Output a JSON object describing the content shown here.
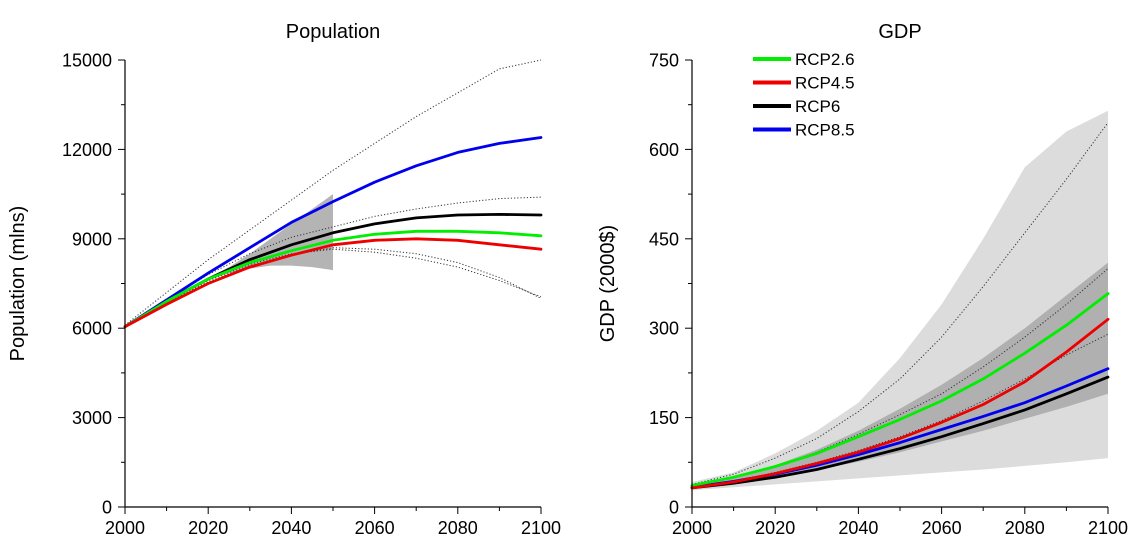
{
  "chart_data": [
    {
      "type": "line",
      "title": "Population",
      "xlabel": "",
      "ylabel": "Population (mlns)",
      "xlim": [
        2000,
        2100
      ],
      "ylim": [
        0,
        15000
      ],
      "xticks": [
        2000,
        2020,
        2040,
        2060,
        2080,
        2100
      ],
      "yticks": [
        0,
        3000,
        6000,
        9000,
        12000,
        15000
      ],
      "grid": false,
      "legend": "none",
      "x": [
        2000,
        2010,
        2020,
        2030,
        2040,
        2050,
        2060,
        2070,
        2080,
        2090,
        2100
      ],
      "series": [
        {
          "name": "RCP2.6",
          "color": "#00ee00",
          "values": [
            6050,
            6900,
            7650,
            8200,
            8600,
            8950,
            9150,
            9250,
            9250,
            9200,
            9100
          ]
        },
        {
          "name": "RCP4.5",
          "color": "#ee0000",
          "values": [
            6050,
            6800,
            7500,
            8050,
            8450,
            8800,
            8950,
            9000,
            8950,
            8800,
            8650
          ]
        },
        {
          "name": "RCP6",
          "color": "#000000",
          "values": [
            6050,
            6900,
            7650,
            8300,
            8800,
            9200,
            9500,
            9700,
            9800,
            9820,
            9800
          ]
        },
        {
          "name": "RCP8.5",
          "color": "#0000ee",
          "values": [
            6050,
            6950,
            7850,
            8700,
            9550,
            10250,
            10900,
            11450,
            11900,
            12200,
            12400
          ]
        }
      ],
      "reference_lines": [
        {
          "style": "dotted",
          "values": [
            6100,
            7200,
            8300,
            9300,
            10300,
            11300,
            12200,
            13100,
            13900,
            14700,
            15000
          ]
        },
        {
          "style": "dotted",
          "values": [
            6050,
            6950,
            7800,
            8500,
            9050,
            9400,
            9750,
            10000,
            10200,
            10350,
            10400
          ]
        },
        {
          "style": "dotted",
          "values": [
            6050,
            6850,
            7600,
            8150,
            8500,
            8650,
            8550,
            8350,
            8050,
            7600,
            7050
          ]
        },
        {
          "style": "dotted",
          "values": [
            6050,
            6850,
            7550,
            8100,
            8450,
            8700,
            8650,
            8500,
            8200,
            7700,
            7000
          ]
        }
      ],
      "band": {
        "color": "#b4b4b4",
        "x": [
          2020,
          2025,
          2030,
          2035,
          2040,
          2045,
          2050
        ],
        "upper": [
          7700,
          8050,
          8500,
          9000,
          9500,
          10000,
          10500
        ],
        "lower": [
          7600,
          7850,
          8000,
          8100,
          8100,
          8050,
          7950
        ]
      }
    },
    {
      "type": "line",
      "title": "GDP",
      "xlabel": "",
      "ylabel": "GDP (2000$)",
      "xlim": [
        2000,
        2100
      ],
      "ylim": [
        0,
        750
      ],
      "xticks": [
        2000,
        2020,
        2040,
        2060,
        2080,
        2100
      ],
      "yticks": [
        0,
        150,
        300,
        450,
        600,
        750
      ],
      "grid": false,
      "legend": "top-left",
      "x": [
        2000,
        2010,
        2020,
        2030,
        2040,
        2050,
        2060,
        2070,
        2080,
        2090,
        2100
      ],
      "series": [
        {
          "name": "RCP2.6",
          "color": "#00ee00",
          "values": [
            36,
            50,
            68,
            90,
            118,
            147,
            178,
            215,
            258,
            305,
            358
          ]
        },
        {
          "name": "RCP4.5",
          "color": "#ee0000",
          "values": [
            32,
            42,
            56,
            73,
            92,
            115,
            142,
            172,
            210,
            260,
            315
          ]
        },
        {
          "name": "RCP6",
          "color": "#000000",
          "values": [
            32,
            40,
            50,
            63,
            80,
            98,
            118,
            140,
            163,
            190,
            218
          ]
        },
        {
          "name": "RCP8.5",
          "color": "#0000ee",
          "values": [
            33,
            43,
            55,
            70,
            88,
            108,
            130,
            152,
            175,
            203,
            232
          ]
        }
      ],
      "reference_lines": [
        {
          "style": "dotted",
          "values": [
            38,
            55,
            82,
            115,
            160,
            215,
            285,
            370,
            460,
            550,
            645
          ]
        },
        {
          "style": "dotted",
          "values": [
            36,
            50,
            68,
            92,
            122,
            155,
            190,
            235,
            285,
            340,
            400
          ]
        },
        {
          "style": "dotted",
          "values": [
            34,
            44,
            58,
            75,
            95,
            118,
            145,
            178,
            215,
            255,
            290
          ]
        }
      ],
      "bands": [
        {
          "color": "#dcdcdc",
          "x": [
            2000,
            2010,
            2020,
            2030,
            2040,
            2050,
            2060,
            2070,
            2080,
            2090,
            2100
          ],
          "upper": [
            42,
            58,
            90,
            128,
            175,
            250,
            340,
            450,
            570,
            630,
            665
          ],
          "lower": [
            28,
            33,
            38,
            43,
            48,
            53,
            58,
            63,
            69,
            75,
            82
          ]
        },
        {
          "color": "#b0b0b0",
          "x": [
            2000,
            2010,
            2020,
            2030,
            2040,
            2050,
            2060,
            2070,
            2080,
            2090,
            2100
          ],
          "upper": [
            36,
            50,
            70,
            96,
            128,
            165,
            205,
            250,
            300,
            355,
            410
          ],
          "lower": [
            32,
            40,
            50,
            62,
            76,
            92,
            110,
            128,
            148,
            168,
            190
          ]
        }
      ]
    }
  ]
}
